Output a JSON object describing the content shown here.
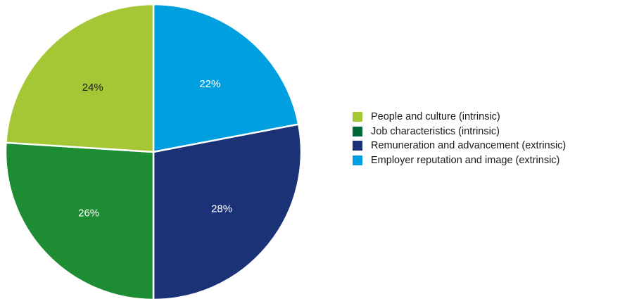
{
  "chart_data": {
    "type": "pie",
    "slices": [
      {
        "label": "Employer reputation and image (extrinsic)",
        "value": 22,
        "display": "22%",
        "color": "#00a0e0"
      },
      {
        "label": "Remuneration and advancement (extrinsic)",
        "value": 28,
        "display": "28%",
        "color": "#1b3276"
      },
      {
        "label": "Job characteristics (intrinsic)",
        "value": 26,
        "display": "26%",
        "color": "#1e8c32"
      },
      {
        "label": "People and culture (intrinsic)",
        "value": 24,
        "display": "24%",
        "color": "#a6c735"
      }
    ],
    "legend": {
      "placement": "right",
      "items": [
        {
          "label": "People and culture (intrinsic)",
          "color": "#a6c735"
        },
        {
          "label": "Job characteristics (intrinsic)",
          "color": "#006838"
        },
        {
          "label": "Remuneration and advancement (extrinsic)",
          "color": "#1b3276"
        },
        {
          "label": "Employer reputation and image (extrinsic)",
          "color": "#00a0e0"
        }
      ]
    }
  }
}
